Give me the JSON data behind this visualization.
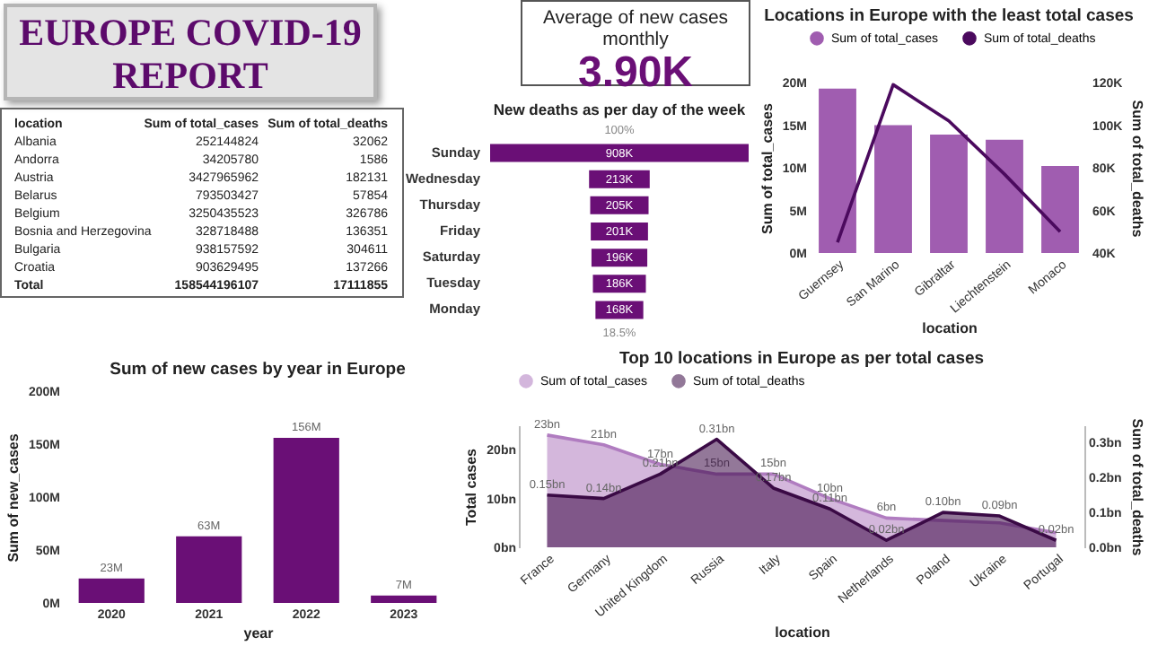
{
  "chart_data": [
    {
      "type": "other",
      "title": "EUROPE COVID-19 REPORT"
    },
    {
      "type": "other",
      "title": "Average of new cases monthly",
      "annotations": [
        "3.90K"
      ]
    },
    {
      "type": "bar",
      "title": "Locations in Europe with the least total cases",
      "categories": [
        "Guernsey",
        "San Marino",
        "Gibraltar",
        "Liechtenstein",
        "Monaco"
      ],
      "xlabel": "location",
      "ylabel": "Sum of total_cases",
      "y2label": "Sum of total_deaths",
      "legend": "top left",
      "series": [
        {
          "name": "Sum of total_cases",
          "type": "bar",
          "color": "#a05db0",
          "values": [
            19.3,
            15,
            13.9,
            13.3,
            10.2
          ]
        },
        {
          "name": "Sum of total_deaths",
          "type": "line",
          "axis": "y2",
          "color": "#4b0a5e",
          "values": [
            45,
            119,
            102,
            77,
            50
          ]
        }
      ],
      "ylim": [
        0,
        20
      ],
      "yticks": [
        {
          "value": 0,
          "label": "0M"
        },
        {
          "value": 5,
          "label": "5M"
        },
        {
          "value": 10,
          "label": "10M"
        },
        {
          "value": 15,
          "label": "15M"
        },
        {
          "value": 20,
          "label": "20M"
        }
      ],
      "y2lim": [
        40,
        120
      ],
      "y2ticks": [
        {
          "value": 40,
          "label": "40K"
        },
        {
          "value": 60,
          "label": "60K"
        },
        {
          "value": 80,
          "label": "80K"
        },
        {
          "value": 100,
          "label": "100K"
        },
        {
          "value": 120,
          "label": "120K"
        }
      ]
    },
    {
      "type": "other",
      "xlabel": "location",
      "categories": [
        "Albania",
        "Andorra",
        "Austria",
        "Belarus",
        "Belgium",
        "Bosnia and Herzegovina",
        "Bulgaria",
        "Croatia",
        "Total"
      ],
      "series": [
        {
          "name": "Sum of total_cases",
          "values": [
            252144824,
            34205780,
            3427965962,
            793503427,
            3250435523,
            328718488,
            938157592,
            903629495,
            158544196107
          ],
          "value_labels": [
            "252144824",
            "34205780",
            "3427965962",
            "793503427",
            "3250435523",
            "328718488",
            "938157592",
            "903629495",
            "158544196107"
          ]
        },
        {
          "name": "Sum of total_deaths",
          "values": [
            32062,
            1586,
            182131,
            57854,
            326786,
            136351,
            304611,
            137266,
            17111855
          ],
          "value_labels": [
            "32062",
            "1586",
            "182131",
            "57854",
            "326786",
            "136351",
            "304611",
            "137266",
            "17111855"
          ]
        }
      ]
    },
    {
      "type": "other",
      "title": "New deaths as per day of the week",
      "categories": [
        "Sunday",
        "Wednesday",
        "Thursday",
        "Friday",
        "Saturday",
        "Tuesday",
        "Monday"
      ],
      "values": [
        908000,
        213000,
        205000,
        201000,
        196000,
        186000,
        168000
      ],
      "value_labels": [
        "908K",
        "213K",
        "205K",
        "201K",
        "196K",
        "186K",
        "168K"
      ],
      "color": "#6a0f76",
      "annotations": [
        "100%",
        "18.5%"
      ]
    },
    {
      "type": "bar",
      "title": "Sum of new cases by year in Europe",
      "categories": [
        "2020",
        "2021",
        "2022",
        "2023"
      ],
      "values": [
        23,
        63,
        156,
        7
      ],
      "value_labels": [
        "23M",
        "63M",
        "156M",
        "7M"
      ],
      "color": "#6a0f76",
      "xlabel": "year",
      "ylabel": "Sum of new_cases",
      "ylim": [
        0,
        200
      ],
      "yticks": [
        {
          "value": 0,
          "label": "0M"
        },
        {
          "value": 50,
          "label": "50M"
        },
        {
          "value": 100,
          "label": "100M"
        },
        {
          "value": 150,
          "label": "150M"
        },
        {
          "value": 200,
          "label": "200M"
        }
      ]
    },
    {
      "type": "area",
      "title": "Top 10 locations in Europe as per total cases",
      "categories": [
        "France",
        "Germany",
        "United Kingdom",
        "Russia",
        "Italy",
        "Spain",
        "Netherlands",
        "Poland",
        "Ukraine",
        "Portugal"
      ],
      "xlabel": "location",
      "ylabel": "Total cases",
      "y2label": "Sum of total_deaths",
      "legend": "top left",
      "series": [
        {
          "name": "Sum of total_cases",
          "color": "#b07cc0",
          "values": [
            23,
            21,
            17,
            15,
            15,
            10,
            6,
            5.5,
            5,
            3
          ],
          "value_labels": [
            "23bn",
            "21bn",
            "17bn",
            "15bn",
            "15bn",
            "10bn",
            "6bn",
            null,
            null,
            null
          ]
        },
        {
          "name": "Sum of total_deaths",
          "axis": "y2",
          "color": "#3a0a45",
          "values": [
            0.15,
            0.14,
            0.21,
            0.31,
            0.17,
            0.11,
            0.02,
            0.1,
            0.09,
            0.02
          ],
          "value_labels": [
            "0.15bn",
            "0.14bn",
            "0.21bn",
            "0.31bn",
            "0.17bn",
            "0.11bn",
            "0.02bn",
            "0.10bn",
            "0.09bn",
            "0.02bn"
          ]
        }
      ],
      "ylim": [
        0,
        25
      ],
      "yticks": [
        {
          "value": 0,
          "label": "0bn"
        },
        {
          "value": 10,
          "label": "10bn"
        },
        {
          "value": 20,
          "label": "20bn"
        }
      ],
      "y2lim": [
        0,
        0.35
      ],
      "y2ticks": [
        {
          "value": 0,
          "label": "0.0bn"
        },
        {
          "value": 0.1,
          "label": "0.1bn"
        },
        {
          "value": 0.2,
          "label": "0.2bn"
        },
        {
          "value": 0.3,
          "label": "0.3bn"
        }
      ]
    }
  ]
}
